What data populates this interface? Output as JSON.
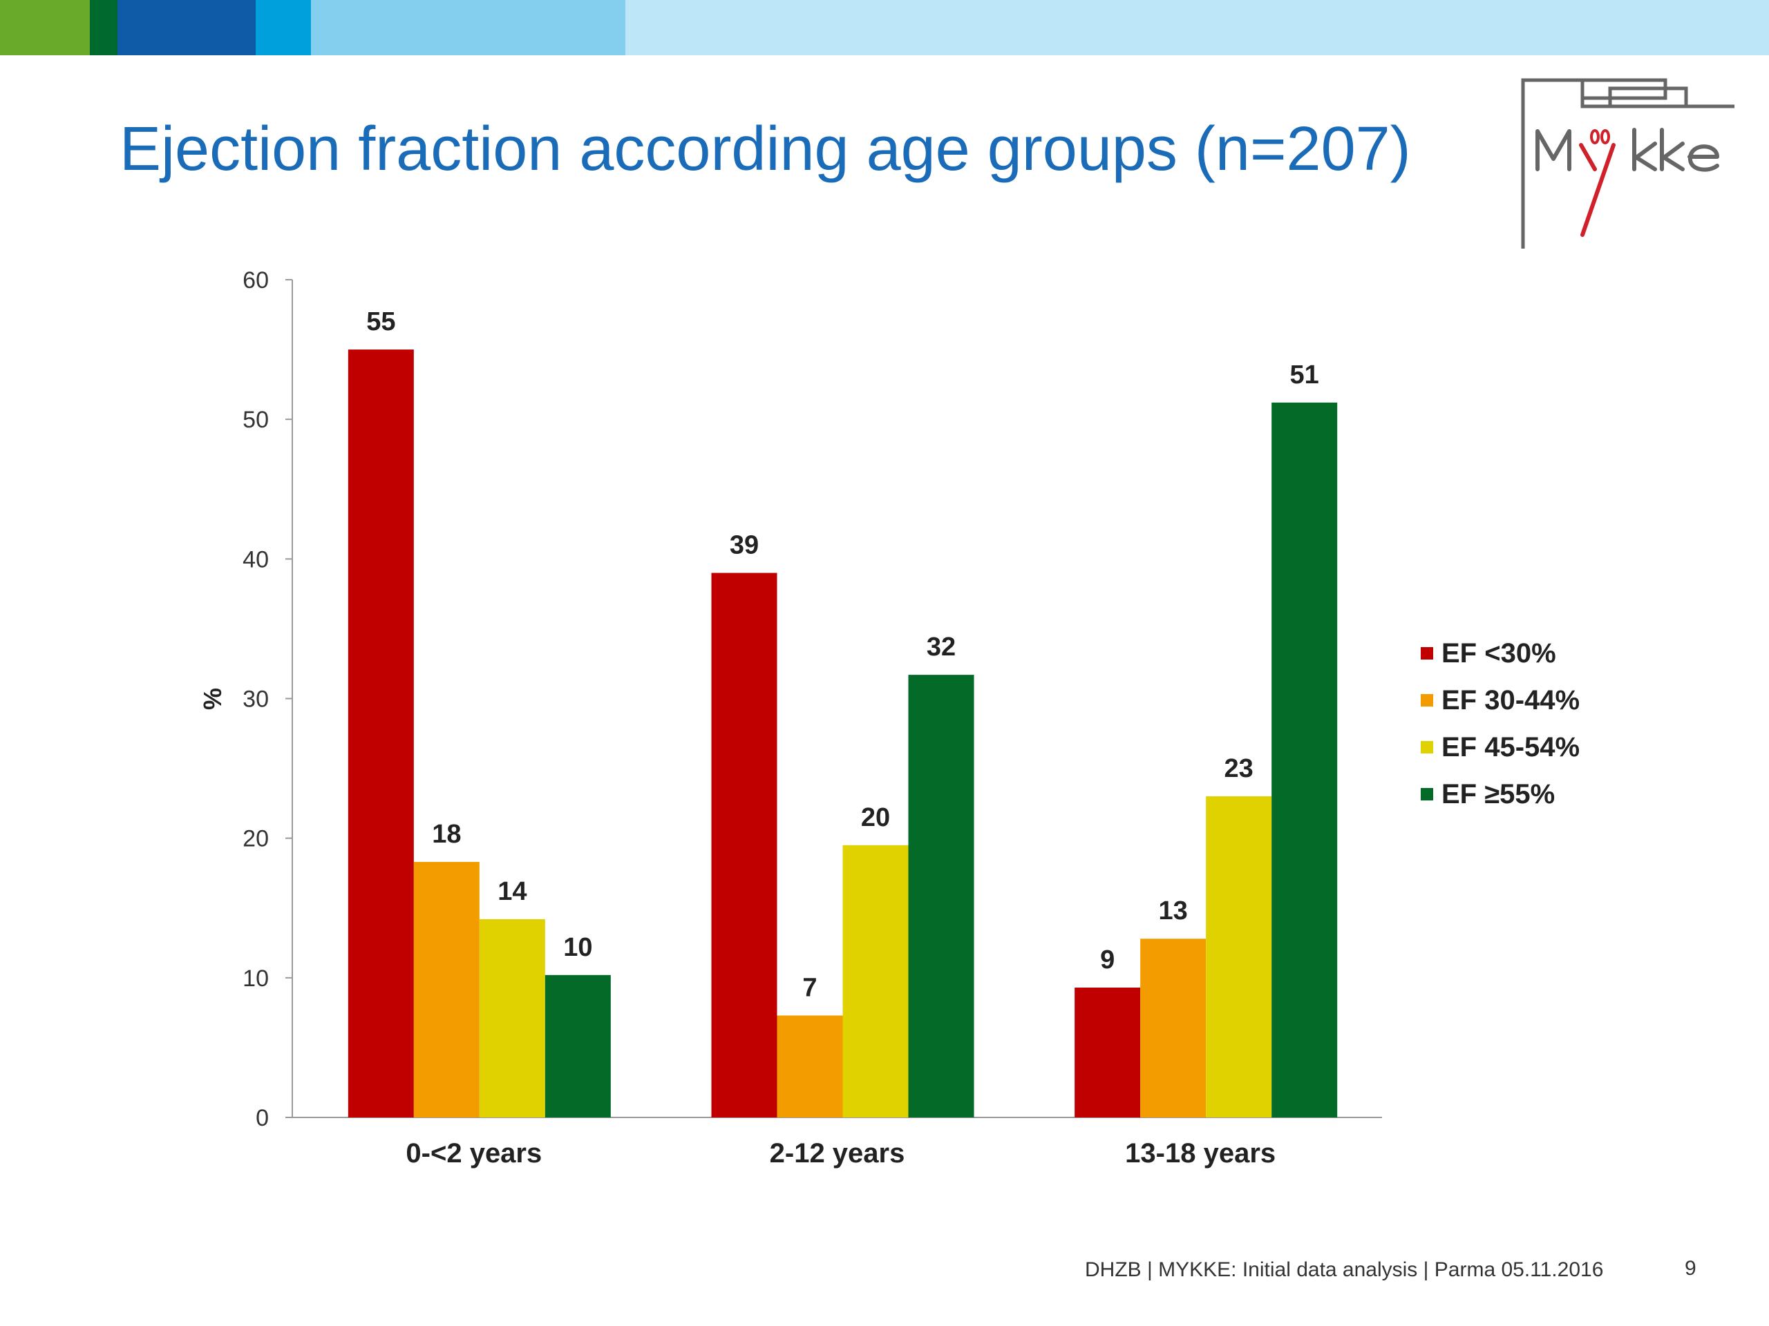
{
  "header": {
    "bar_colors": [
      "#6aaa2a",
      "#006a2e",
      "#0f5ba8",
      "#00a0dc",
      "#84cfee",
      "#bde6f8"
    ]
  },
  "slide": {
    "title": "Ejection fraction according age groups (n=207)"
  },
  "logo": {
    "text": "MYKKE",
    "accent_color": "#d0202a"
  },
  "footer": {
    "text": "DHZB | MYKKE: Initial data analysis | Parma 05.11.2016",
    "page_number": "9"
  },
  "chart_data": {
    "type": "bar",
    "categories": [
      "0-<2 years",
      "2-12 years",
      "13-18 years"
    ],
    "series": [
      {
        "name": "EF <30%",
        "color": "#c00000",
        "values": [
          55,
          39,
          9
        ]
      },
      {
        "name": "EF 30-44%",
        "color": "#f39c00",
        "values": [
          18,
          7,
          13
        ]
      },
      {
        "name": "EF 45-54%",
        "color": "#e0d200",
        "values": [
          14,
          20,
          23
        ]
      },
      {
        "name": "EF ≥55%",
        "color": "#036a28",
        "values": [
          10,
          32,
          51
        ]
      }
    ],
    "exact_values": [
      [
        55,
        39,
        9.3
      ],
      [
        18.3,
        7.3,
        12.8
      ],
      [
        14.2,
        19.5,
        23
      ],
      [
        10.2,
        31.7,
        51.2
      ]
    ],
    "ylabel": "%",
    "ylim": [
      0,
      60
    ],
    "yticks": [
      "0",
      "10",
      "20",
      "30",
      "40",
      "50",
      "60"
    ],
    "grid": false,
    "legend_position": "right"
  }
}
